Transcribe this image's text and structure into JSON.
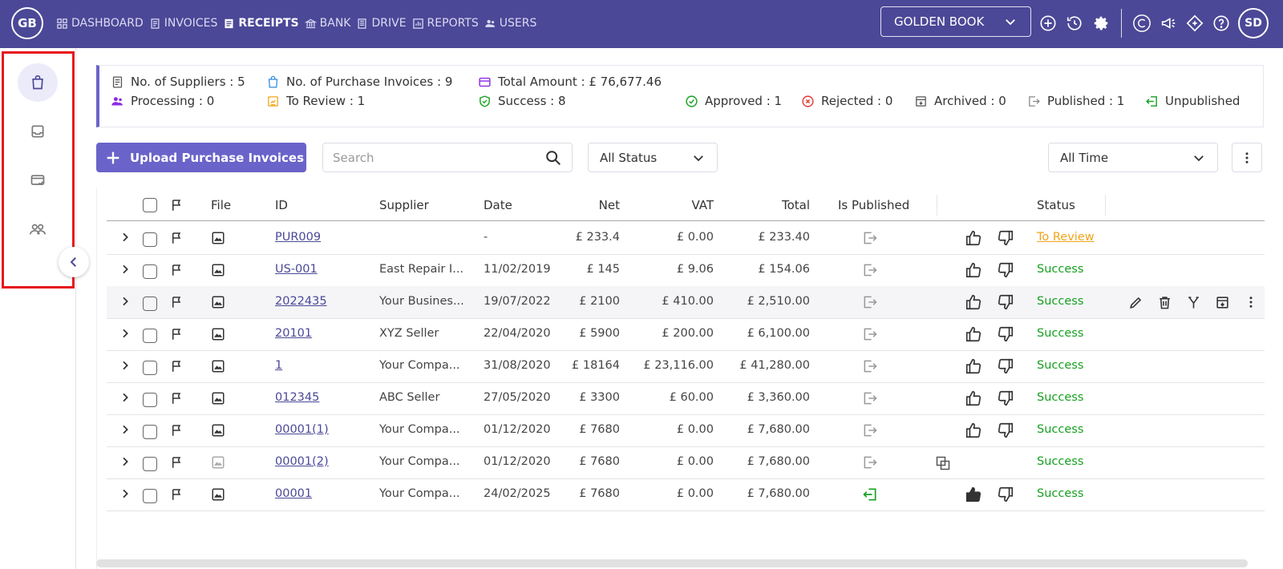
{
  "app": {
    "logo_text": "GB",
    "company": "GOLDEN BOOK",
    "user_initials": "SD"
  },
  "nav": [
    {
      "label": "DASHBOARD",
      "icon": "grid-icon",
      "active": false
    },
    {
      "label": "INVOICES",
      "icon": "invoice-icon",
      "active": false
    },
    {
      "label": "RECEIPTS",
      "icon": "receipt-icon",
      "active": true
    },
    {
      "label": "BANK",
      "icon": "bank-icon",
      "active": false
    },
    {
      "label": "DRIVE",
      "icon": "drive-icon",
      "active": false
    },
    {
      "label": "REPORTS",
      "icon": "reports-icon",
      "active": false
    },
    {
      "label": "USERS",
      "icon": "users-icon",
      "active": false
    }
  ],
  "top_icons": [
    "plus-circle-icon",
    "history-icon",
    "gear-icon",
    "brand-c-icon",
    "megaphone-icon",
    "puzzle-icon",
    "help-icon"
  ],
  "sidebar": [
    {
      "icon": "shopping-bag-icon",
      "active": true
    },
    {
      "icon": "inbox-icon",
      "active": false
    },
    {
      "icon": "card-check-icon",
      "active": false
    },
    {
      "icon": "people-icon",
      "active": false
    }
  ],
  "stats": {
    "suppliers": "No. of Suppliers : 5",
    "purchase_invoices": "No. of Purchase Invoices : 9",
    "total_amount": "Total Amount : £ 76,677.46",
    "processing": "Processing : 0",
    "to_review": "To Review : 1",
    "success": "Success : 8",
    "approved": "Approved : 1",
    "rejected": "Rejected : 0",
    "archived": "Archived : 0",
    "published": "Published : 1",
    "unpublished": "Unpublished"
  },
  "toolbar": {
    "upload_label": "Upload Purchase Invoices",
    "search_placeholder": "Search",
    "status_filter": "All Status",
    "time_filter": "All Time"
  },
  "table": {
    "headers": {
      "file": "File",
      "id": "ID",
      "supplier": "Supplier",
      "date": "Date",
      "net": "Net",
      "vat": "VAT",
      "total": "Total",
      "published": "Is Published",
      "status": "Status"
    },
    "rows": [
      {
        "id": "PUR009",
        "supplier": "",
        "date": "-",
        "net": "£ 233.4",
        "vat": "£ 0.00",
        "total": "£ 233.40",
        "published": false,
        "status": "To Review",
        "mode": "review"
      },
      {
        "id": "US-001",
        "supplier": "East Repair I...",
        "date": "11/02/2019",
        "net": "£ 145",
        "vat": "£ 9.06",
        "total": "£ 154.06",
        "published": false,
        "status": "Success",
        "mode": "review"
      },
      {
        "id": "2022435",
        "supplier": "Your Busines...",
        "date": "19/07/2022",
        "net": "£ 2100",
        "vat": "£ 410.00",
        "total": "£ 2,510.00",
        "published": false,
        "status": "Success",
        "mode": "review",
        "hover": true
      },
      {
        "id": "20101",
        "supplier": "XYZ Seller",
        "date": "22/04/2020",
        "net": "£ 5900",
        "vat": "£ 200.00",
        "total": "£ 6,100.00",
        "published": false,
        "status": "Success",
        "mode": "review"
      },
      {
        "id": "1",
        "supplier": "Your Compa...",
        "date": "31/08/2020",
        "net": "£ 18164",
        "vat": "£ 23,116.00",
        "total": "£ 41,280.00",
        "published": false,
        "status": "Success",
        "mode": "review"
      },
      {
        "id": "012345",
        "supplier": "ABC Seller",
        "date": "27/05/2020",
        "net": "£ 3300",
        "vat": "£ 60.00",
        "total": "£ 3,360.00",
        "published": false,
        "status": "Success",
        "mode": "review"
      },
      {
        "id": "00001(1)",
        "supplier": "Your Compa...",
        "date": "01/12/2020",
        "net": "£ 7680",
        "vat": "£ 0.00",
        "total": "£ 7,680.00",
        "published": false,
        "status": "Success",
        "mode": "review"
      },
      {
        "id": "00001(2)",
        "supplier": "Your Compa...",
        "date": "01/12/2020",
        "net": "£ 7680",
        "vat": "£ 0.00",
        "total": "£ 7,680.00",
        "published": false,
        "status": "Success",
        "mode": "duplicate"
      },
      {
        "id": "00001",
        "supplier": "Your Compa...",
        "date": "24/02/2025",
        "net": "£ 7680",
        "vat": "£ 0.00",
        "total": "£ 7,680.00",
        "published": true,
        "status": "Success",
        "mode": "approved"
      }
    ]
  }
}
